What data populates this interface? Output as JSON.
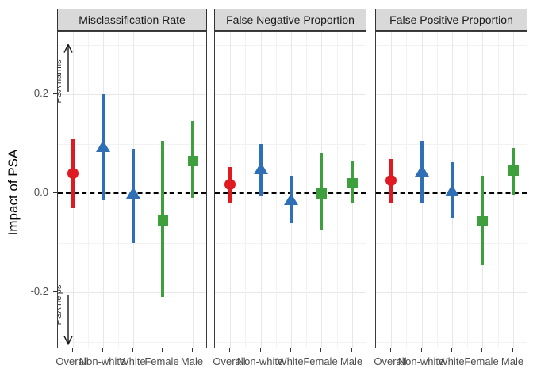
{
  "chart_data": {
    "type": "pointrange",
    "description": "Faceted point-range chart: point estimates with vertical confidence interval bars across subgroups, three facets.",
    "categories": [
      "Overall",
      "Non-white",
      "White",
      "Female",
      "Male"
    ],
    "y_axis": {
      "label": "Impact of PSA",
      "ticks": [
        {
          "value": 0.2,
          "label": "0.2"
        },
        {
          "value": 0.0,
          "label": "0.0"
        },
        {
          "value": -0.2,
          "label": "-0.2"
        }
      ],
      "ylim": [
        -0.315,
        0.326
      ],
      "major_grid": [
        0.2,
        -0.2
      ],
      "minor_grid": [
        0.3,
        0.1,
        -0.1,
        -0.3
      ]
    },
    "zero_line": {
      "value": 0,
      "style": "dashed",
      "color": "#000000"
    },
    "legend": "none",
    "series_style": {
      "Overall": {
        "color": "#DF1B21",
        "shape": "circle"
      },
      "Non-white": {
        "color": "#2E6FB5",
        "shape": "triangle"
      },
      "White": {
        "color": "#2E6FB5",
        "shape": "triangle"
      },
      "Female": {
        "color": "#3EA03C",
        "shape": "square"
      },
      "Male": {
        "color": "#3EA03C",
        "shape": "square"
      }
    },
    "facets": [
      {
        "title": "Misclassification Rate",
        "points": [
          {
            "category": "Overall",
            "est": 0.04,
            "lo": -0.03,
            "hi": 0.11
          },
          {
            "category": "Non-white",
            "est": 0.095,
            "lo": -0.015,
            "hi": 0.2
          },
          {
            "category": "White",
            "est": 0.0,
            "lo": -0.1,
            "hi": 0.09
          },
          {
            "category": "Female",
            "est": -0.055,
            "lo": -0.21,
            "hi": 0.105
          },
          {
            "category": "Male",
            "est": 0.065,
            "lo": -0.01,
            "hi": 0.145
          }
        ]
      },
      {
        "title": "False Negative Proportion",
        "points": [
          {
            "category": "Overall",
            "est": 0.017,
            "lo": -0.02,
            "hi": 0.053
          },
          {
            "category": "Non-white",
            "est": 0.05,
            "lo": -0.005,
            "hi": 0.1
          },
          {
            "category": "White",
            "est": -0.013,
            "lo": -0.06,
            "hi": 0.036
          },
          {
            "category": "Female",
            "est": 0.0,
            "lo": -0.075,
            "hi": 0.081
          },
          {
            "category": "Male",
            "est": 0.021,
            "lo": -0.02,
            "hi": 0.064
          }
        ]
      },
      {
        "title": "False Positive Proportion",
        "points": [
          {
            "category": "Overall",
            "est": 0.025,
            "lo": -0.02,
            "hi": 0.069
          },
          {
            "category": "Non-white",
            "est": 0.045,
            "lo": -0.02,
            "hi": 0.105
          },
          {
            "category": "White",
            "est": 0.005,
            "lo": -0.051,
            "hi": 0.063
          },
          {
            "category": "Female",
            "est": -0.056,
            "lo": -0.146,
            "hi": 0.036
          },
          {
            "category": "Male",
            "est": 0.046,
            "lo": -0.003,
            "hi": 0.092
          }
        ]
      }
    ],
    "annotations": [
      {
        "text": "PSA harms",
        "arrow": "up",
        "arrow_from": 0.205,
        "arrow_to": 0.3,
        "text_center": 0.225,
        "facet": 0
      },
      {
        "text": "PSA helps",
        "arrow": "down",
        "arrow_from": -0.205,
        "arrow_to": -0.305,
        "text_center": -0.225,
        "facet": 0
      }
    ]
  },
  "theme": {
    "strip_bg": "#d9d9d9",
    "strip_border": "#333333",
    "panel_border": "#3c3c3c",
    "grid_major": "#e7e7e7",
    "grid_minor": "#f2f2f2",
    "axis_text": "#4d4d4d",
    "arrow_color": "#1a1a1a"
  }
}
